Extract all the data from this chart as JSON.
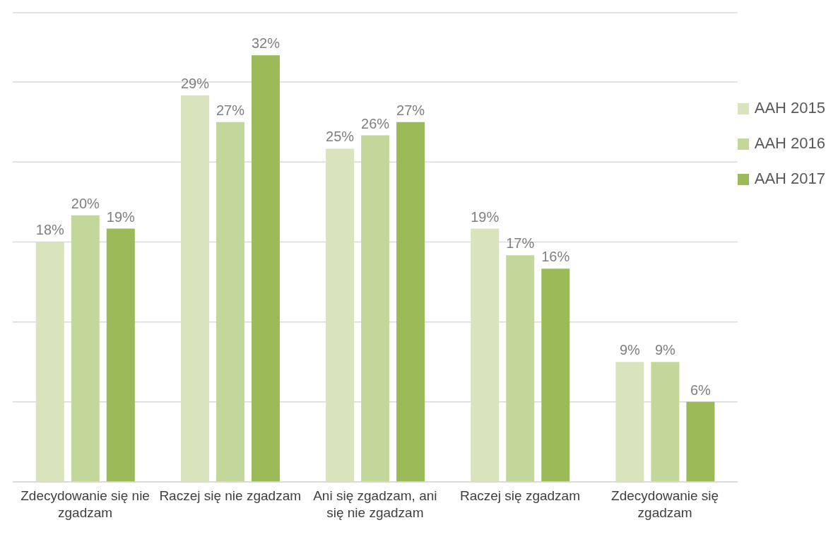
{
  "chart_data": {
    "type": "bar",
    "categories": [
      "Zdecydowanie się nie zgadzam",
      "Raczej się nie zgadzam",
      "Ani się zgadzam, ani się nie zgadzam",
      "Raczej się zgadzam",
      "Zdecydowanie się zgadzam"
    ],
    "series": [
      {
        "name": "AAH 2015",
        "color": "#d9e4bd",
        "values": [
          18,
          29,
          25,
          19,
          9
        ],
        "value_labels": [
          "18%",
          "29%",
          "25%",
          "19%",
          "9%"
        ]
      },
      {
        "name": "AAH 2016",
        "color": "#c4d79b",
        "values": [
          20,
          27,
          26,
          17,
          9
        ],
        "value_labels": [
          "20%",
          "27%",
          "26%",
          "17%",
          "9%"
        ]
      },
      {
        "name": "AAH 2017",
        "color": "#9bbb59",
        "values": [
          19,
          32,
          27,
          16,
          6
        ],
        "value_labels": [
          "19%",
          "32%",
          "27%",
          "16%",
          "6%"
        ]
      }
    ],
    "grid": "y",
    "legend": "top right",
    "tick_labels": "x"
  }
}
